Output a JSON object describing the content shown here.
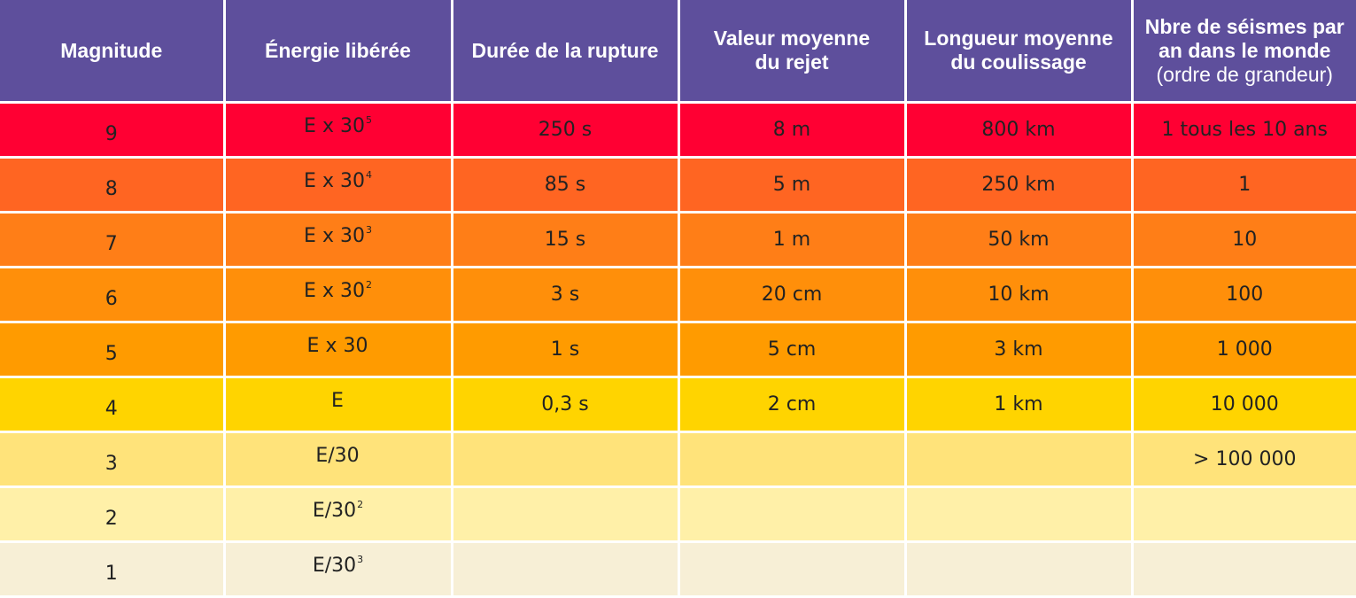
{
  "table": {
    "headers": [
      {
        "line1": "Magnitude",
        "line2": "",
        "sub": ""
      },
      {
        "line1": "Énergie libérée",
        "line2": "",
        "sub": ""
      },
      {
        "line1": "Durée de la rupture",
        "line2": "",
        "sub": ""
      },
      {
        "line1": "Valeur moyenne",
        "line2": "du rejet",
        "sub": ""
      },
      {
        "line1": "Longueur moyenne",
        "line2": "du coulissage",
        "sub": ""
      },
      {
        "line1": "Nbre de séismes par",
        "line2": "an dans le monde",
        "sub": "(ordre de grandeur)"
      }
    ],
    "rows": [
      {
        "magnitude": "9",
        "energy": "E x 30",
        "energy_exp": "5",
        "duration": "250 s",
        "offset": "8 m",
        "length": "800 km",
        "count": "1 tous les 10 ans",
        "color": "#ff0033"
      },
      {
        "magnitude": "8",
        "energy": "E x 30",
        "energy_exp": "4",
        "duration": "85 s",
        "offset": "5 m",
        "length": "250 km",
        "count": "1",
        "color": "#ff6522"
      },
      {
        "magnitude": "7",
        "energy": "E x 30",
        "energy_exp": "3",
        "duration": "15 s",
        "offset": "1 m",
        "length": "50 km",
        "count": "10",
        "color": "#ff7e17"
      },
      {
        "magnitude": "6",
        "energy": "E x 30",
        "energy_exp": "2",
        "duration": "3 s",
        "offset": "20 cm",
        "length": "10 km",
        "count": "100",
        "color": "#ff8f0a"
      },
      {
        "magnitude": "5",
        "energy": "E x 30",
        "energy_exp": "",
        "duration": "1 s",
        "offset": "5 cm",
        "length": "3 km",
        "count": "1 000",
        "color": "#ff9b00"
      },
      {
        "magnitude": "4",
        "energy": "E",
        "energy_exp": "",
        "duration": "0,3 s",
        "offset": "2 cm",
        "length": "1 km",
        "count": "10 000",
        "color": "#ffd400"
      },
      {
        "magnitude": "3",
        "energy": "E/30",
        "energy_exp": "",
        "duration": "",
        "offset": "",
        "length": "",
        "count": "> 100 000",
        "color": "#ffe37a"
      },
      {
        "magnitude": "2",
        "energy": "E/30",
        "energy_exp": "2",
        "duration": "",
        "offset": "",
        "length": "",
        "count": "",
        "color": "#fff0a8"
      },
      {
        "magnitude": "1",
        "energy": "E/30",
        "energy_exp": "3",
        "duration": "",
        "offset": "",
        "length": "",
        "count": "",
        "color": "#f7efd6"
      }
    ]
  }
}
